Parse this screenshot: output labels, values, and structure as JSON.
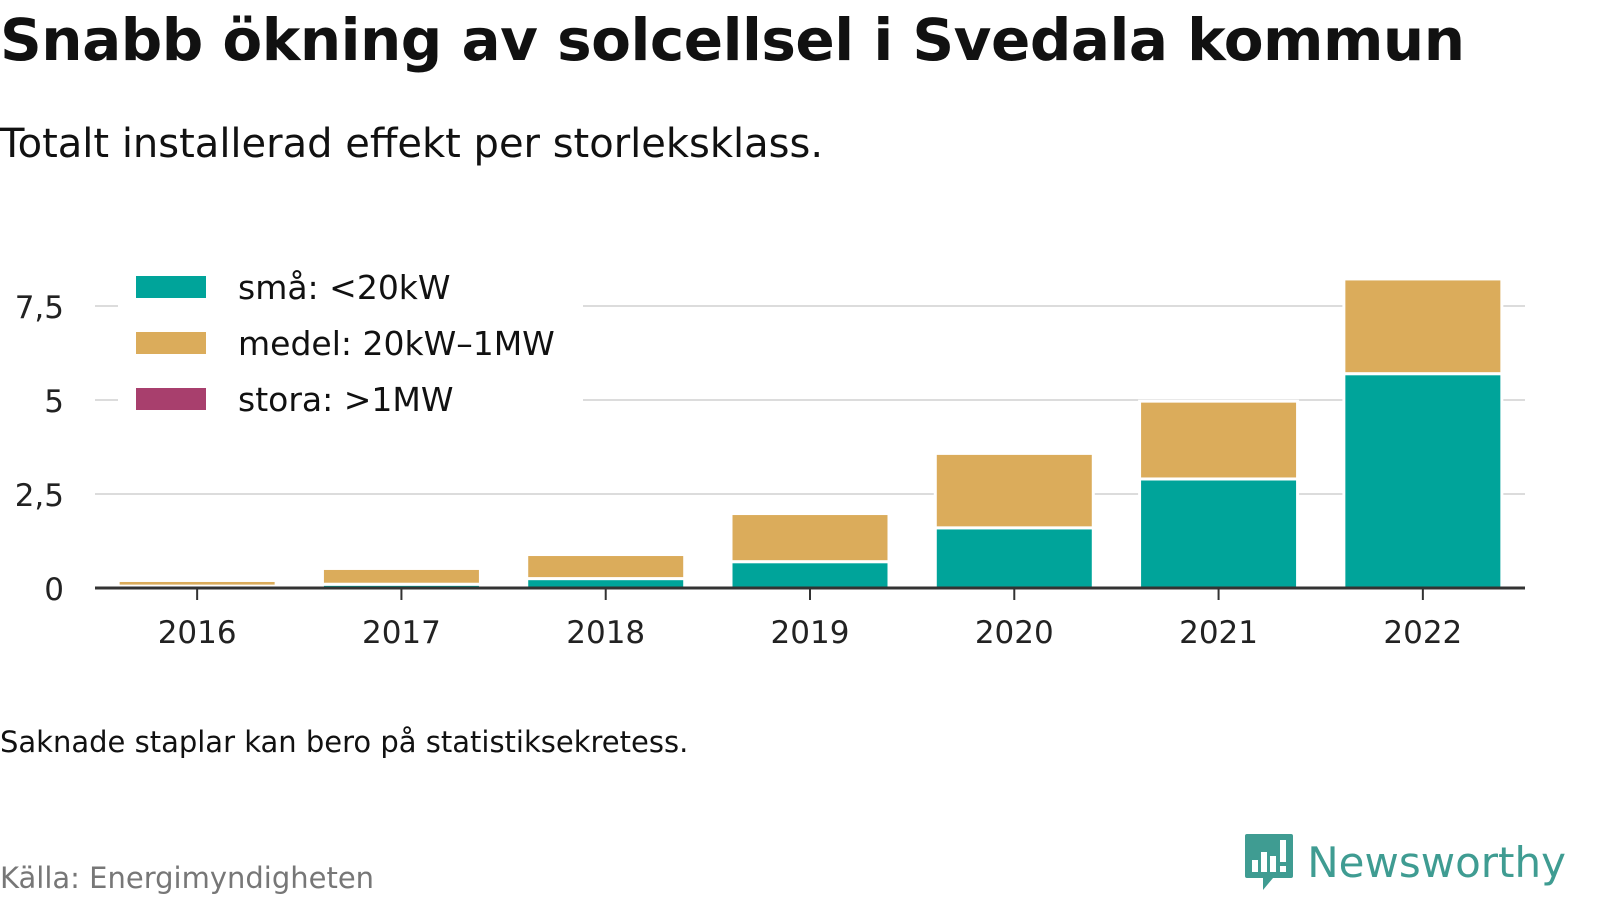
{
  "title": "Snabb ökning av solcellsel i Svedala kommun",
  "subtitle": "Totalt installerad effekt per storleksklass.",
  "note": "Saknade staplar kan bero på statistiksekretess.",
  "source": "Källa: Energimyndigheten",
  "brand": {
    "name": "Newsworthy",
    "icon": "newsworthy-logo-icon",
    "color": "#3f9c92"
  },
  "chart_data": {
    "type": "bar",
    "stacked": true,
    "categories": [
      "2016",
      "2017",
      "2018",
      "2019",
      "2020",
      "2021",
      "2022"
    ],
    "series": [
      {
        "name": "små: <20kW",
        "color": "#00a49a",
        "values": [
          0.05,
          0.1,
          0.25,
          0.7,
          1.6,
          2.9,
          5.7
        ]
      },
      {
        "name": "medel: 20kW–1MW",
        "color": "#dbac5b",
        "values": [
          0.15,
          0.42,
          0.64,
          1.28,
          1.98,
          2.07,
          2.52
        ]
      },
      {
        "name": "stora: >1MW",
        "color": "#a83f6d",
        "values": [
          0,
          0,
          0,
          0,
          0,
          0,
          0
        ]
      }
    ],
    "yticks": [
      0,
      2.5,
      5,
      7.5
    ],
    "ytick_labels": [
      "0",
      "2,5",
      "5",
      "7,5"
    ],
    "ylim": [
      0,
      8.3
    ],
    "xlabel": "",
    "ylabel": "",
    "grid": true,
    "legend": "top-left"
  }
}
